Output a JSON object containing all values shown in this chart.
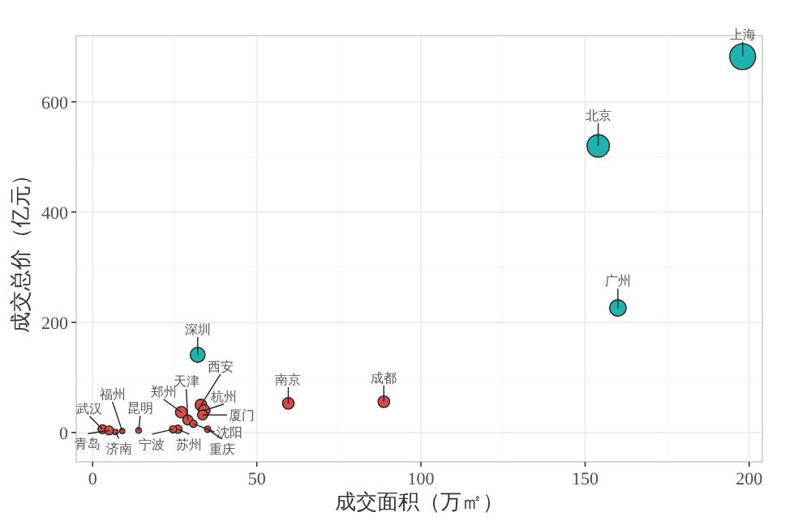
{
  "chart_data": {
    "type": "bubble",
    "xlabel": "成交面积（万㎡）",
    "ylabel": "成交总价（亿元）",
    "xlim": [
      -5,
      204
    ],
    "ylim": [
      -53,
      720
    ],
    "xticks": [
      0,
      50,
      100,
      150,
      200
    ],
    "yticks": [
      0,
      200,
      400,
      600
    ],
    "grid": true,
    "series": [
      {
        "color": "#1fb3b0",
        "x": [
          198,
          154,
          160,
          32
        ],
        "values": [
          682,
          520,
          226,
          141
        ],
        "sizes": [
          1,
          0.75,
          0.4,
          0.33
        ]
      },
      {
        "color": "#d64b45",
        "x": [
          59.6,
          88.7,
          3,
          5,
          7,
          9,
          14,
          27,
          29,
          33,
          34,
          33.5,
          26,
          24.5,
          30.7,
          35
        ],
        "values": [
          53,
          56,
          6,
          4,
          1,
          3,
          4,
          37,
          23,
          50,
          40,
          32,
          6,
          6,
          16,
          6
        ],
        "sizes": [
          0.2,
          0.2,
          0.12,
          0.12,
          0.04,
          0.04,
          0.05,
          0.2,
          0.15,
          0.2,
          0.2,
          0.15,
          0.1,
          0.08,
          0.08,
          0.06
        ]
      }
    ],
    "annotations": [
      {
        "text": "上海",
        "x": 198,
        "y": 682
      },
      {
        "text": "北京",
        "x": 154,
        "y": 520
      },
      {
        "text": "广州",
        "x": 160,
        "y": 226
      },
      {
        "text": "深圳",
        "x": 32,
        "y": 141
      },
      {
        "text": "南京",
        "x": 59.6,
        "y": 53
      },
      {
        "text": "成都",
        "x": 88.7,
        "y": 56
      },
      {
        "text": "武汉",
        "x": 3,
        "y": 6
      },
      {
        "text": "青岛",
        "x": 5,
        "y": 4
      },
      {
        "text": "济南",
        "x": 7,
        "y": 1
      },
      {
        "text": "福州",
        "x": 9,
        "y": 3
      },
      {
        "text": "昆明",
        "x": 14,
        "y": 4
      },
      {
        "text": "郑州",
        "x": 27,
        "y": 37
      },
      {
        "text": "天津",
        "x": 29,
        "y": 23
      },
      {
        "text": "西安",
        "x": 33,
        "y": 50
      },
      {
        "text": "杭州",
        "x": 34,
        "y": 40
      },
      {
        "text": "厦门",
        "x": 33.5,
        "y": 32
      },
      {
        "text": "苏州",
        "x": 26,
        "y": 6
      },
      {
        "text": "宁波",
        "x": 24.5,
        "y": 6
      },
      {
        "text": "沈阳",
        "x": 30.7,
        "y": 16
      },
      {
        "text": "重庆",
        "x": 35,
        "y": 6
      }
    ]
  }
}
